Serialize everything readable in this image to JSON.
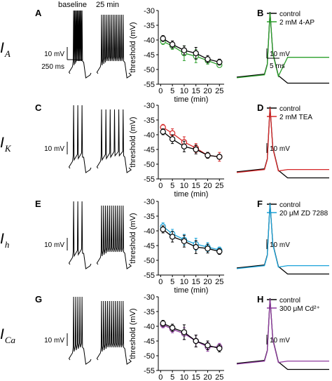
{
  "column_titles": {
    "baseline": "baseline",
    "after": "25 min"
  },
  "colors": {
    "control": "#000000",
    "4-AP": "#2ca02c",
    "TEA": "#d62728",
    "ZD7288": "#1ba3d9",
    "Cd": "#8e3a9e"
  },
  "rows": [
    {
      "id": "IA",
      "trace_letter": "A",
      "ap_letter": "B",
      "current_main": "I",
      "current_sub": "A",
      "trace_scale_v": "10 mV",
      "trace_scale_t": "250 ms",
      "ap_scale_v": "10 mV",
      "ap_scale_t": "5 ms",
      "legend": [
        "control",
        "2 mM 4-AP"
      ],
      "treatment_color_key": "4-AP",
      "ap_treat_afterpot": -0.32
    },
    {
      "id": "IK",
      "trace_letter": "C",
      "ap_letter": "D",
      "current_main": "I",
      "current_sub": "K",
      "trace_scale_v": "10 mV",
      "trace_scale_t": "",
      "ap_scale_v": "10 mV",
      "ap_scale_t": "",
      "legend": [
        "control",
        "2 mM TEA"
      ],
      "treatment_color_key": "TEA",
      "ap_treat_afterpot": -0.78
    },
    {
      "id": "Ih",
      "trace_letter": "E",
      "ap_letter": "F",
      "current_main": "I",
      "current_sub": "h",
      "trace_scale_v": "10 mV",
      "trace_scale_t": "",
      "ap_scale_v": "10 mV",
      "ap_scale_t": "",
      "legend": [
        "control",
        "20 μM ZD 7288"
      ],
      "treatment_color_key": "ZD7288",
      "ap_treat_afterpot": -0.88
    },
    {
      "id": "ICa",
      "trace_letter": "G",
      "ap_letter": "H",
      "current_main": "I",
      "current_sub": "Ca",
      "trace_scale_v": "10 mV",
      "trace_scale_t": "",
      "ap_scale_v": "10 mV",
      "ap_scale_t": "",
      "legend": [
        "control",
        "300 μM Cd²⁺"
      ],
      "treatment_color_key": "Cd",
      "ap_treat_afterpot": -0.72
    }
  ],
  "chart_data": [
    {
      "type": "line",
      "panel": "A",
      "xlabel": "time (min)",
      "ylabel": "threshold (mV)",
      "xlim": [
        -1,
        27
      ],
      "ylim": [
        -55,
        -30
      ],
      "xticks": [
        0,
        5,
        10,
        15,
        20,
        25
      ],
      "yticks": [
        -55,
        -50,
        -45,
        -40,
        -35,
        -30
      ],
      "x": [
        1,
        5,
        10,
        15,
        20,
        25
      ],
      "series": [
        {
          "name": "control",
          "color_key": "control",
          "values": [
            -39.5,
            -41.5,
            -43.5,
            -44.5,
            -46.5,
            -47.5
          ],
          "errors": [
            1.0,
            1.2,
            1.5,
            2.0,
            1.2,
            1.0
          ]
        },
        {
          "name": "2 mM 4-AP",
          "color_key": "4-AP",
          "values": [
            -40.5,
            -42.0,
            -44.5,
            -45.5,
            -47.0,
            -48.5
          ],
          "errors": [
            1.0,
            1.2,
            2.5,
            2.2,
            1.2,
            0.8
          ]
        }
      ]
    },
    {
      "type": "line",
      "panel": "C",
      "xlabel": "time (min)",
      "ylabel": "threshold (mV)",
      "xlim": [
        -1,
        27
      ],
      "ylim": [
        -55,
        -30
      ],
      "xticks": [
        0,
        5,
        10,
        15,
        20,
        25
      ],
      "yticks": [
        -55,
        -50,
        -45,
        -40,
        -35,
        -30
      ],
      "x": [
        1,
        5,
        10,
        15,
        20,
        25
      ],
      "series": [
        {
          "name": "control",
          "color_key": "control",
          "values": [
            -39.0,
            -41.5,
            -44.0,
            -45.0,
            -47.0,
            -47.5
          ],
          "errors": [
            1.0,
            1.5,
            1.8,
            1.5,
            1.0,
            0.8
          ]
        },
        {
          "name": "2 mM TEA",
          "color_key": "TEA",
          "values": [
            -37.5,
            -39.5,
            -42.5,
            -44.5,
            -47.0,
            -47.5
          ],
          "errors": [
            1.0,
            1.5,
            1.8,
            1.5,
            1.0,
            1.5
          ]
        }
      ]
    },
    {
      "type": "line",
      "panel": "E",
      "xlabel": "time (min)",
      "ylabel": "threshold (mV)",
      "xlim": [
        -1,
        27
      ],
      "ylim": [
        -55,
        -30
      ],
      "xticks": [
        0,
        5,
        10,
        15,
        20,
        25
      ],
      "yticks": [
        -55,
        -50,
        -45,
        -40,
        -35,
        -30
      ],
      "x": [
        1,
        5,
        10,
        15,
        20,
        25
      ],
      "series": [
        {
          "name": "control",
          "color_key": "control",
          "values": [
            -39.5,
            -42.0,
            -43.5,
            -45.5,
            -46.0,
            -47.0
          ],
          "errors": [
            1.2,
            1.8,
            2.0,
            2.2,
            1.5,
            1.0
          ]
        },
        {
          "name": "20 μM ZD 7288",
          "color_key": "ZD7288",
          "values": [
            -38.5,
            -41.0,
            -43.0,
            -44.5,
            -45.5,
            -46.5
          ],
          "errors": [
            1.2,
            1.5,
            1.8,
            2.0,
            1.5,
            1.0
          ]
        }
      ]
    },
    {
      "type": "line",
      "panel": "G",
      "xlabel": "time (min)",
      "ylabel": "threshold (mV)",
      "xlim": [
        -1,
        27
      ],
      "ylim": [
        -55,
        -30
      ],
      "xticks": [
        0,
        5,
        10,
        15,
        20,
        25
      ],
      "yticks": [
        -55,
        -50,
        -45,
        -40,
        -35,
        -30
      ],
      "x": [
        1,
        5,
        10,
        15,
        20,
        25
      ],
      "series": [
        {
          "name": "control",
          "color_key": "control",
          "values": [
            -39.0,
            -40.5,
            -42.0,
            -45.0,
            -46.5,
            -47.5
          ],
          "errors": [
            1.0,
            1.2,
            2.5,
            2.0,
            1.5,
            1.2
          ]
        },
        {
          "name": "300 μM Cd²⁺",
          "color_key": "Cd",
          "values": [
            -39.5,
            -41.0,
            -42.5,
            -45.0,
            -47.0,
            -47.0
          ],
          "errors": [
            1.0,
            1.2,
            2.0,
            2.0,
            1.5,
            1.2
          ]
        }
      ]
    }
  ]
}
